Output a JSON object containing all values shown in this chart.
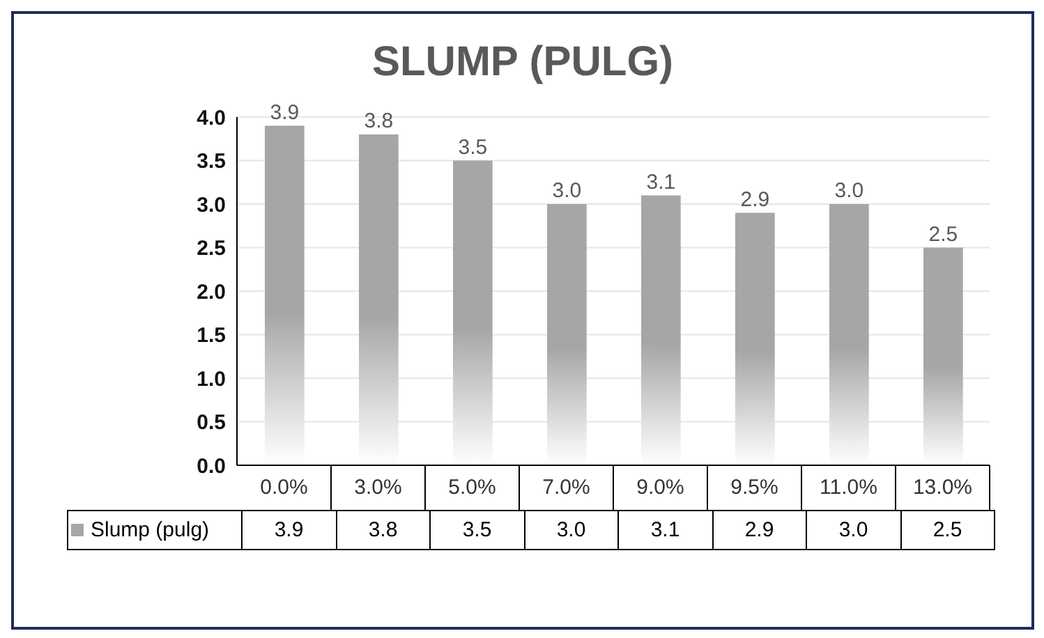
{
  "chart_data": {
    "type": "bar",
    "title": "SLUMP (PULG)",
    "categories": [
      "0.0%",
      "3.0%",
      "5.0%",
      "7.0%",
      "9.0%",
      "9.5%",
      "11.0%",
      "13.0%"
    ],
    "series": [
      {
        "name": "Slump (pulg)",
        "color": "#a6a6a6",
        "values": [
          3.9,
          3.8,
          3.5,
          3.0,
          3.1,
          2.9,
          3.0,
          2.5
        ],
        "value_labels": [
          "3.9",
          "3.8",
          "3.5",
          "3.0",
          "3.1",
          "2.9",
          "3.0",
          "2.5"
        ]
      }
    ],
    "ylim": [
      0,
      4
    ],
    "yticks": [
      {
        "value": 0,
        "label": "0.0"
      },
      0.5,
      {
        "value": 1,
        "label": "1.0"
      },
      1.5,
      {
        "value": 2,
        "label": "2.0"
      },
      2.5,
      {
        "value": 3,
        "label": "3.0"
      },
      3.5,
      {
        "value": 4,
        "label": "4.0"
      }
    ],
    "grid": "y",
    "legend": "bottom"
  }
}
